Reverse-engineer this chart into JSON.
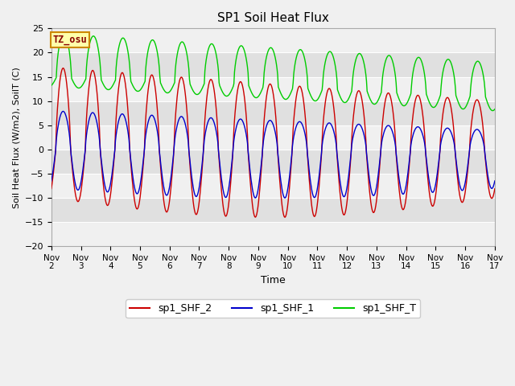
{
  "title": "SP1 Soil Heat Flux",
  "xlabel": "Time",
  "ylabel": "Soil Heat Flux (W/m2), SoilT (C)",
  "ylim": [
    -20,
    25
  ],
  "xlim_days": [
    2,
    17
  ],
  "line_colors": {
    "shf2": "#cc0000",
    "shf1": "#0000cc",
    "shft": "#00cc00"
  },
  "legend_labels": [
    "sp1_SHF_2",
    "sp1_SHF_1",
    "sp1_SHF_T"
  ],
  "tz_label": "TZ_osu",
  "tz_bg": "#ffffaa",
  "tz_border": "#cc8800",
  "tz_text_color": "#880000",
  "tick_labels": [
    "Nov\n2",
    "Nov\n3",
    "Nov\n4",
    "Nov\n5",
    "Nov\n6",
    "Nov\n7",
    "Nov\n8",
    "Nov\n9",
    "Nov\n10",
    "Nov\n11",
    "Nov\n12",
    "Nov\n13",
    "Nov\n14",
    "Nov\n15",
    "Nov\n16",
    "Nov\n17"
  ],
  "band_colors_light": "#f0f0f0",
  "band_colors_dark": "#e0e0e0",
  "fig_bg": "#f0f0f0",
  "font_family": "DejaVu Sans"
}
